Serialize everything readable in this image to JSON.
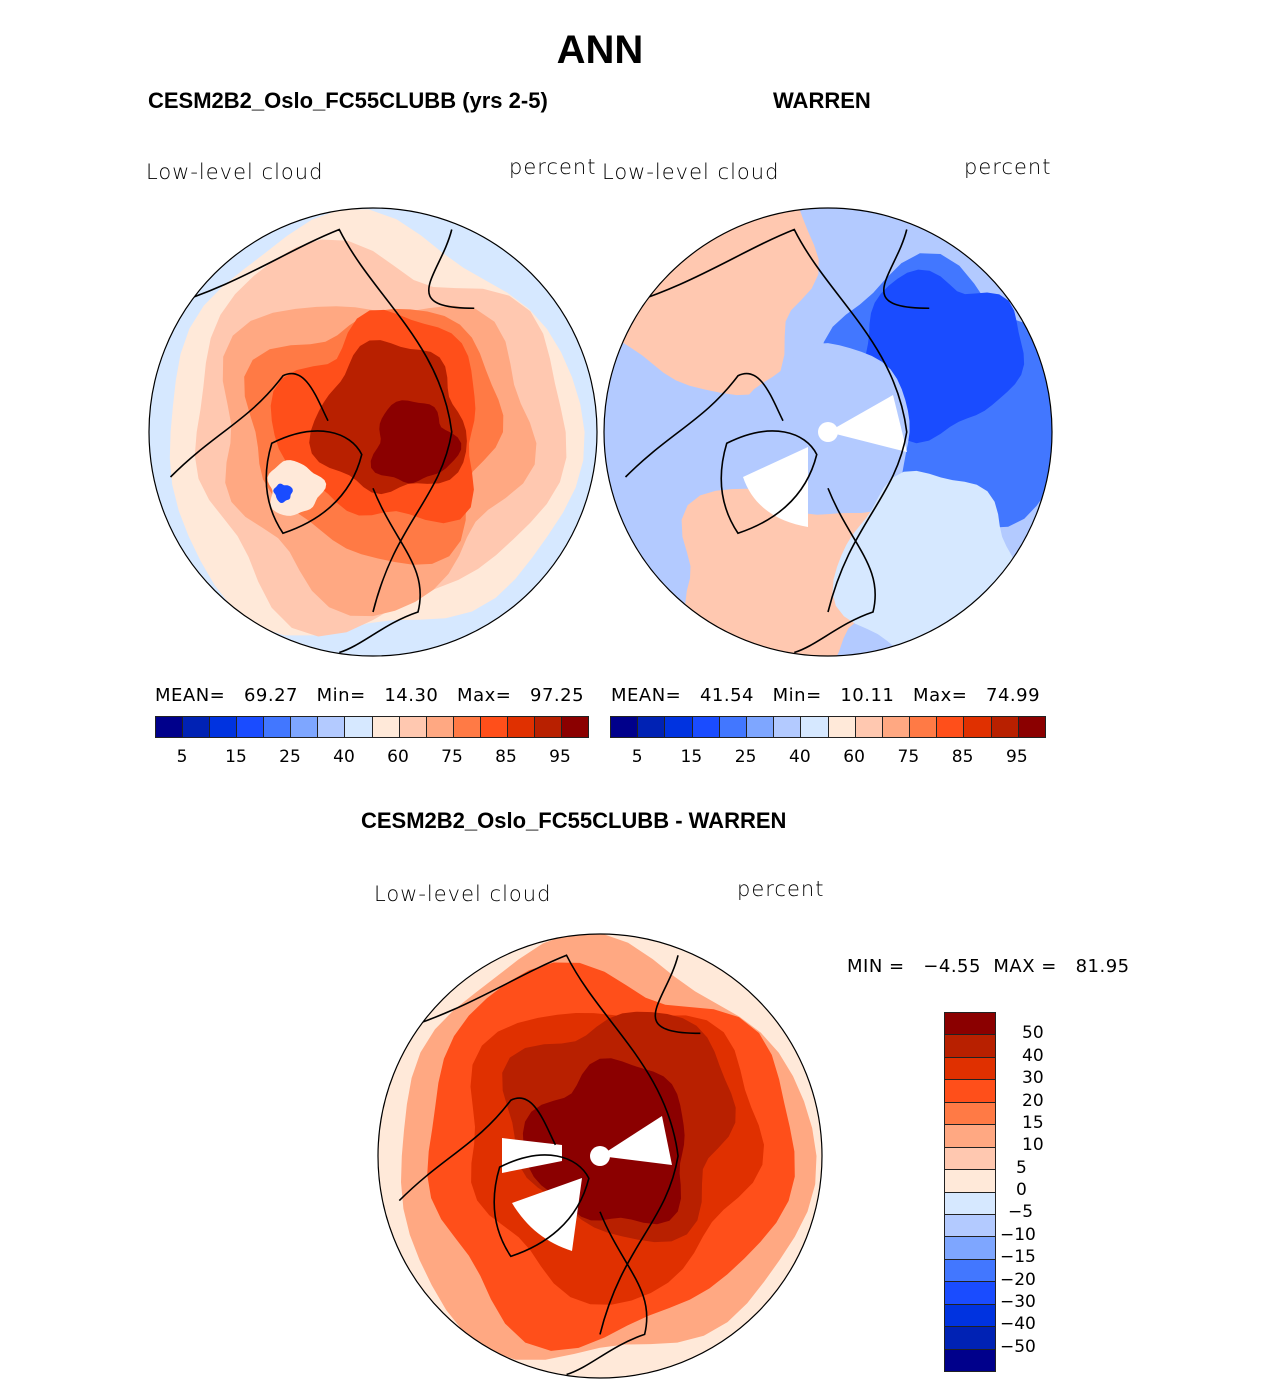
{
  "figure": {
    "title": "ANN"
  },
  "palette": [
    "#00008b",
    "#0022b4",
    "#0033e0",
    "#1a4cff",
    "#4277ff",
    "#7ea6ff",
    "#b3caff",
    "#d6e8ff",
    "#ffe9d9",
    "#ffc8b0",
    "#ffa882",
    "#ff7a45",
    "#ff4f1a",
    "#e03000",
    "#b82000",
    "#8b0000"
  ],
  "chart_data": [
    {
      "type": "heatmap",
      "projection": "north-polar-stereographic",
      "title": "CESM2B2_Oslo_FC55CLUBB (yrs 2-5)",
      "variable_label": "Low-level cloud",
      "units_label": "percent",
      "stats": {
        "mean_label": "MEAN=",
        "mean": "69.27",
        "min_label": "Min=",
        "min": "14.30",
        "max_label": "Max=",
        "max": "97.25"
      },
      "colorbar": {
        "orientation": "horizontal",
        "levels": [
          5,
          10,
          15,
          20,
          25,
          30,
          40,
          50,
          60,
          70,
          75,
          80,
          85,
          90,
          95
        ],
        "tick_labels": [
          "5",
          "15",
          "25",
          "40",
          "60",
          "75",
          "85",
          "95"
        ]
      },
      "regions": [
        {
          "name": "central-arctic-eurasian",
          "value_band": 15
        },
        {
          "name": "central-arctic",
          "value_band": 14
        },
        {
          "name": "arctic-margin",
          "value_band": 12
        },
        {
          "name": "north-atlantic",
          "value_band": 11
        },
        {
          "name": "subarctic",
          "value_band": 10
        },
        {
          "name": "mid-latitude",
          "value_band": 9
        },
        {
          "name": "greenland-interior",
          "value_band": 6
        },
        {
          "name": "outer-ring",
          "value_band": 7
        }
      ]
    },
    {
      "type": "heatmap",
      "projection": "north-polar-stereographic",
      "title": "WARREN",
      "variable_label": "Low-level cloud",
      "units_label": "percent",
      "stats": {
        "mean_label": "MEAN=",
        "mean": "41.54",
        "min_label": "Min=",
        "min": "10.11",
        "max_label": "Max=",
        "max": "74.99"
      },
      "colorbar": {
        "orientation": "horizontal",
        "levels": [
          5,
          10,
          15,
          20,
          25,
          30,
          40,
          50,
          60,
          70,
          75,
          80,
          85,
          90,
          95
        ],
        "tick_labels": [
          "5",
          "15",
          "25",
          "40",
          "60",
          "75",
          "85",
          "95"
        ]
      },
      "regions": [
        {
          "name": "north-pacific-siberia",
          "value_band": 3
        },
        {
          "name": "central-arctic",
          "value_band": 6
        },
        {
          "name": "arctic-margin",
          "value_band": 5
        },
        {
          "name": "north-atlantic",
          "value_band": 9
        },
        {
          "name": "europe",
          "value_band": 7
        },
        {
          "name": "north-america",
          "value_band": 6
        }
      ]
    },
    {
      "type": "heatmap",
      "projection": "north-polar-stereographic",
      "title": "CESM2B2_Oslo_FC55CLUBB - WARREN",
      "variable_label": "Low-level cloud",
      "units_label": "percent",
      "stats": {
        "min_label": "MIN =",
        "min": "−4.55",
        "max_label": "MAX =",
        "max": "81.95"
      },
      "colorbar": {
        "orientation": "vertical",
        "levels": [
          -50,
          -40,
          -30,
          -20,
          -15,
          -10,
          -5,
          0,
          5,
          10,
          15,
          20,
          30,
          40,
          50
        ],
        "tick_labels": [
          "50",
          "40",
          "30",
          "20",
          "15",
          "10",
          "5",
          "0",
          "−5",
          "−10",
          "−15",
          "−20",
          "−30",
          "−40",
          "−50"
        ]
      },
      "regions": [
        {
          "name": "central-arctic",
          "value_band": 15
        },
        {
          "name": "siberia-pacific",
          "value_band": 14
        },
        {
          "name": "arctic-margin",
          "value_band": 13
        },
        {
          "name": "subarctic",
          "value_band": 12
        },
        {
          "name": "mid-latitude",
          "value_band": 10
        },
        {
          "name": "outer-ring",
          "value_band": 9
        }
      ]
    }
  ]
}
